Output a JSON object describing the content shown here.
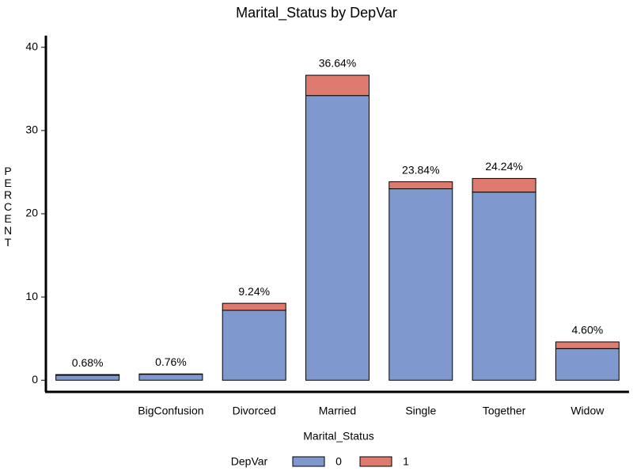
{
  "chart_data": {
    "type": "bar",
    "stacked": true,
    "title": "Marital_Status by DepVar",
    "x_label": "Marital_Status",
    "y_label": "PERCENT",
    "categories": [
      null,
      "BigConfusion",
      "Divorced",
      "Married",
      "Single",
      "Together",
      "Widow"
    ],
    "series": [
      {
        "name": "0",
        "color": "#7f98cd",
        "values": [
          0.6,
          0.72,
          8.4,
          34.2,
          23.0,
          22.6,
          3.8
        ]
      },
      {
        "name": "1",
        "color": "#de7b6e",
        "values": [
          0.08,
          0.04,
          0.84,
          2.44,
          0.84,
          1.64,
          0.8
        ]
      }
    ],
    "totals": [
      0.68,
      0.76,
      9.24,
      36.64,
      23.84,
      24.24,
      4.6
    ],
    "total_labels": [
      "0.68%",
      "0.76%",
      "9.24%",
      "36.64%",
      "23.84%",
      "24.24%",
      "4.60%"
    ],
    "legend_title": "DepVar",
    "legend_position": "bottom",
    "ylim": [
      -1.4,
      41.4
    ],
    "yticks": [
      0,
      10,
      20,
      30,
      40
    ],
    "grid": false
  }
}
